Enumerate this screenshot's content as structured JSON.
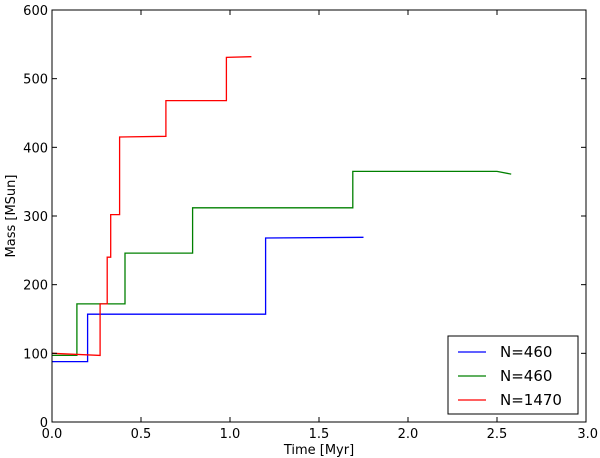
{
  "chart_data": {
    "type": "line",
    "title": "",
    "xlabel": "Time [Myr]",
    "ylabel": "Mass [MSun]",
    "xlim": [
      0.0,
      3.0
    ],
    "ylim": [
      0,
      600
    ],
    "xticks": [
      "0.0",
      "0.5",
      "1.0",
      "1.5",
      "2.0",
      "2.5",
      "3.0"
    ],
    "yticks": [
      "0",
      "100",
      "200",
      "300",
      "400",
      "500",
      "600"
    ],
    "grid": false,
    "legend_position": "bottom-right",
    "series": [
      {
        "name": "N=460",
        "color": "#0000ff",
        "x": [
          0.0,
          0.2,
          0.2,
          1.2,
          1.2,
          1.75
        ],
        "y": [
          88,
          88,
          157,
          157,
          268,
          269
        ]
      },
      {
        "name": "N=460",
        "color": "#008000",
        "x": [
          0.0,
          0.14,
          0.14,
          0.41,
          0.41,
          0.79,
          0.79,
          1.69,
          1.69,
          2.5,
          2.58
        ],
        "y": [
          97,
          97,
          172,
          172,
          246,
          246,
          312,
          312,
          365,
          365,
          361
        ]
      },
      {
        "name": "N=1470",
        "color": "#ff0000",
        "x": [
          0.0,
          0.27,
          0.27,
          0.31,
          0.31,
          0.33,
          0.33,
          0.38,
          0.38,
          0.64,
          0.64,
          0.98,
          0.98,
          1.12
        ],
        "y": [
          100,
          97,
          172,
          172,
          240,
          240,
          302,
          302,
          415,
          416,
          468,
          468,
          531,
          532
        ]
      }
    ]
  }
}
